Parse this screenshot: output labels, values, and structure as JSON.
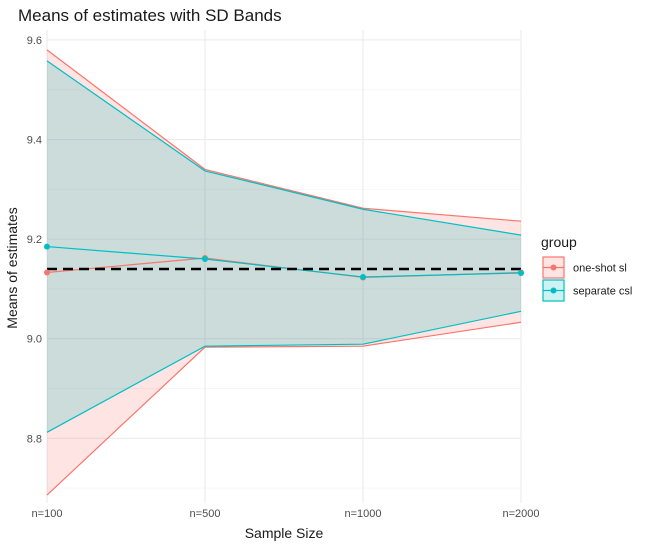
{
  "chart_data": {
    "type": "line",
    "title": "Means of estimates with SD Bands",
    "xlabel": "Sample Size",
    "ylabel": "Means of estimates",
    "categories": [
      "n=100",
      "n=500",
      "n=1000",
      "n=2000"
    ],
    "ylim": [
      8.67,
      9.62
    ],
    "yticks": [
      "8.8",
      "9.0",
      "9.2",
      "9.4",
      "9.6"
    ],
    "grid": true,
    "reference_line": {
      "y": 9.14,
      "style": "dashed",
      "color": "#000000"
    },
    "legend": {
      "title": "group",
      "position": "right"
    },
    "series": [
      {
        "name": "one-shot sl",
        "color": "#F8766D",
        "mean": [
          9.133,
          9.162,
          9.123,
          9.133
        ],
        "upper": [
          9.58,
          9.34,
          9.262,
          9.236
        ],
        "lower": [
          8.686,
          8.983,
          8.985,
          9.033
        ]
      },
      {
        "name": "separate csl",
        "color": "#00BFC4",
        "mean": [
          9.185,
          9.16,
          9.124,
          9.132
        ],
        "upper": [
          9.558,
          9.337,
          9.26,
          9.208
        ],
        "lower": [
          8.812,
          8.985,
          8.989,
          9.055
        ]
      }
    ]
  }
}
